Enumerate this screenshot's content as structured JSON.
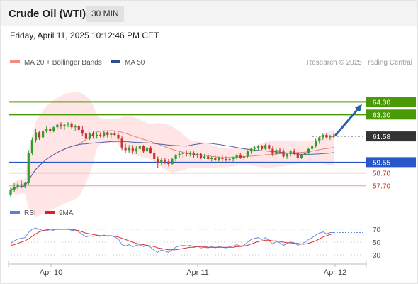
{
  "header": {
    "title": "Crude Oil (WTI)",
    "timeframe": "30 MIN"
  },
  "datetime": "Friday, April 11, 2025 10:12:46 PM CET",
  "legend": {
    "ma20": "MA 20 + Bollinger Bands",
    "ma50": "MA 50",
    "credit": "Research © 2025 Trading Central",
    "rsi": "RSI",
    "ma9": "9MA"
  },
  "colors": {
    "resistance": "#4a9a08",
    "current": "#333333",
    "pivot": "#2857c9",
    "support": "#c8301e",
    "support_line": "#f0b4a8",
    "bollinger_fill": "#ffe0e0",
    "ma20": "#e88080",
    "ma50": "#4a63a8",
    "candle_up": "#2e9e2e",
    "candle_down": "#c83232",
    "rsi": "#6a8fd8",
    "ma9": "#e03030",
    "arrow": "#2a5fb0"
  },
  "chart_data": {
    "type": "candlestick",
    "price_range": [
      56.5,
      66.0
    ],
    "levels": [
      {
        "name": "resistance-2",
        "value": 64.3,
        "label": "64.30",
        "kind": "resistance"
      },
      {
        "name": "resistance-1",
        "value": 63.3,
        "label": "63.30",
        "kind": "resistance"
      },
      {
        "name": "current",
        "value": 61.58,
        "label": "61.58",
        "kind": "current"
      },
      {
        "name": "pivot",
        "value": 59.55,
        "label": "59.55",
        "kind": "pivot"
      },
      {
        "name": "support-1",
        "value": 58.7,
        "label": "58.70",
        "kind": "support"
      },
      {
        "name": "support-2",
        "value": 57.7,
        "label": "57.70",
        "kind": "support"
      }
    ],
    "x_labels": [
      "Apr 10",
      "Apr 11",
      "Apr 12"
    ],
    "candles": [
      [
        57.0,
        57.6,
        56.8,
        57.4
      ],
      [
        57.4,
        57.9,
        57.2,
        57.6
      ],
      [
        57.6,
        58.0,
        57.4,
        57.8
      ],
      [
        57.8,
        58.1,
        57.5,
        57.7
      ],
      [
        57.7,
        58.0,
        57.5,
        57.9
      ],
      [
        57.9,
        60.5,
        57.8,
        60.3
      ],
      [
        60.3,
        61.5,
        60.1,
        61.3
      ],
      [
        61.3,
        62.2,
        61.1,
        61.9
      ],
      [
        61.9,
        62.0,
        61.3,
        61.5
      ],
      [
        61.5,
        62.2,
        61.4,
        62.0
      ],
      [
        62.0,
        62.4,
        61.8,
        62.2
      ],
      [
        62.2,
        62.3,
        61.8,
        62.0
      ],
      [
        62.0,
        62.4,
        61.9,
        62.3
      ],
      [
        62.3,
        62.6,
        62.1,
        62.5
      ],
      [
        62.5,
        62.7,
        62.2,
        62.4
      ],
      [
        62.4,
        62.6,
        62.1,
        62.5
      ],
      [
        62.5,
        62.7,
        62.3,
        62.6
      ],
      [
        62.6,
        62.7,
        62.2,
        62.3
      ],
      [
        62.3,
        62.5,
        62.0,
        62.4
      ],
      [
        62.4,
        62.5,
        62.0,
        62.1
      ],
      [
        62.1,
        62.4,
        61.6,
        61.8
      ],
      [
        61.8,
        61.9,
        61.2,
        61.4
      ],
      [
        61.4,
        61.9,
        61.3,
        61.8
      ],
      [
        61.8,
        62.0,
        61.4,
        61.6
      ],
      [
        61.6,
        61.9,
        61.4,
        61.7
      ],
      [
        61.7,
        61.9,
        61.5,
        61.6
      ],
      [
        61.6,
        62.0,
        61.5,
        61.9
      ],
      [
        61.9,
        62.0,
        61.5,
        61.7
      ],
      [
        61.7,
        61.9,
        61.4,
        61.8
      ],
      [
        61.8,
        62.0,
        61.6,
        61.7
      ],
      [
        61.7,
        61.9,
        61.3,
        61.4
      ],
      [
        61.4,
        61.6,
        60.5,
        60.7
      ],
      [
        60.7,
        61.0,
        60.3,
        60.5
      ],
      [
        60.5,
        60.9,
        60.3,
        60.7
      ],
      [
        60.7,
        60.9,
        60.2,
        60.4
      ],
      [
        60.4,
        60.8,
        60.2,
        60.6
      ],
      [
        60.6,
        60.9,
        60.4,
        60.8
      ],
      [
        60.8,
        60.9,
        60.3,
        60.4
      ],
      [
        60.4,
        60.8,
        60.3,
        60.7
      ],
      [
        60.7,
        60.8,
        60.2,
        60.3
      ],
      [
        60.3,
        60.5,
        59.6,
        59.8
      ],
      [
        59.8,
        60.0,
        59.1,
        59.5
      ],
      [
        59.5,
        59.9,
        59.3,
        59.7
      ],
      [
        59.7,
        59.9,
        59.4,
        59.6
      ],
      [
        59.6,
        59.8,
        59.2,
        59.4
      ],
      [
        59.4,
        59.9,
        59.3,
        59.8
      ],
      [
        59.8,
        60.2,
        59.6,
        60.1
      ],
      [
        60.1,
        60.4,
        59.9,
        60.2
      ],
      [
        60.2,
        60.4,
        59.9,
        60.3
      ],
      [
        60.3,
        60.5,
        60.0,
        60.2
      ],
      [
        60.2,
        60.4,
        60.0,
        60.3
      ],
      [
        60.3,
        60.4,
        59.9,
        60.1
      ],
      [
        60.1,
        60.3,
        59.9,
        60.2
      ],
      [
        60.2,
        60.3,
        59.8,
        59.9
      ],
      [
        59.9,
        60.2,
        59.8,
        60.0
      ],
      [
        60.0,
        60.2,
        59.7,
        59.8
      ],
      [
        59.8,
        60.0,
        59.6,
        59.9
      ],
      [
        59.9,
        60.1,
        59.6,
        59.7
      ],
      [
        59.7,
        60.0,
        59.5,
        59.9
      ],
      [
        59.9,
        60.1,
        59.6,
        59.8
      ],
      [
        59.8,
        60.0,
        59.6,
        59.7
      ],
      [
        59.7,
        59.9,
        59.5,
        59.8
      ],
      [
        59.8,
        60.0,
        59.6,
        59.9
      ],
      [
        59.9,
        60.2,
        59.7,
        60.1
      ],
      [
        60.1,
        60.3,
        59.8,
        59.9
      ],
      [
        59.9,
        60.1,
        59.7,
        60.0
      ],
      [
        60.0,
        60.5,
        59.9,
        60.4
      ],
      [
        60.4,
        60.7,
        60.2,
        60.6
      ],
      [
        60.6,
        60.8,
        60.4,
        60.7
      ],
      [
        60.7,
        60.9,
        60.5,
        60.8
      ],
      [
        60.8,
        60.9,
        60.5,
        60.6
      ],
      [
        60.6,
        61.0,
        60.5,
        60.9
      ],
      [
        60.9,
        61.0,
        60.5,
        60.6
      ],
      [
        60.6,
        60.8,
        60.0,
        60.2
      ],
      [
        60.2,
        60.6,
        60.1,
        60.5
      ],
      [
        60.5,
        60.7,
        60.2,
        60.4
      ],
      [
        60.4,
        60.6,
        59.9,
        60.0
      ],
      [
        60.0,
        60.3,
        59.8,
        60.2
      ],
      [
        60.2,
        60.5,
        60.0,
        60.4
      ],
      [
        60.4,
        60.6,
        60.1,
        60.3
      ],
      [
        60.3,
        60.4,
        59.8,
        59.9
      ],
      [
        59.9,
        60.2,
        59.8,
        60.1
      ],
      [
        60.1,
        60.4,
        59.9,
        60.3
      ],
      [
        60.3,
        60.7,
        60.2,
        60.6
      ],
      [
        60.6,
        60.9,
        60.4,
        60.8
      ],
      [
        60.8,
        61.4,
        60.7,
        61.2
      ],
      [
        61.2,
        61.6,
        61.0,
        61.5
      ],
      [
        61.5,
        61.8,
        61.3,
        61.7
      ],
      [
        61.7,
        61.8,
        61.4,
        61.5
      ],
      [
        61.5,
        61.7,
        61.3,
        61.6
      ],
      [
        61.6,
        61.8,
        61.4,
        61.58
      ]
    ],
    "rsi_range": [
      20,
      80
    ],
    "rsi_levels": [
      70,
      50,
      30
    ],
    "rsi": [
      48,
      52,
      55,
      56,
      57,
      65,
      70,
      72,
      70,
      68,
      69,
      67,
      69,
      71,
      70,
      70,
      71,
      68,
      69,
      66,
      62,
      58,
      60,
      59,
      60,
      59,
      61,
      59,
      60,
      58,
      55,
      46,
      44,
      46,
      43,
      45,
      46,
      43,
      45,
      42,
      37,
      34,
      38,
      36,
      34,
      38,
      42,
      44,
      45,
      44,
      45,
      43,
      44,
      41,
      42,
      41,
      43,
      41,
      43,
      42,
      41,
      43,
      44,
      46,
      44,
      45,
      50,
      54,
      56,
      57,
      54,
      57,
      53,
      47,
      51,
      49,
      45,
      48,
      50,
      49,
      45,
      47,
      50,
      54,
      57,
      61,
      64,
      66,
      63,
      65,
      65
    ],
    "ma9": [
      45,
      46,
      48,
      50,
      52,
      55,
      59,
      63,
      66,
      68,
      69,
      70,
      70,
      70,
      70,
      70,
      70,
      70,
      69,
      68,
      66,
      64,
      63,
      62,
      61,
      60,
      60,
      60,
      60,
      59,
      58,
      56,
      54,
      52,
      50,
      48,
      47,
      46,
      45,
      44,
      43,
      41,
      40,
      39,
      38,
      38,
      38,
      39,
      40,
      41,
      42,
      42,
      43,
      43,
      43,
      42,
      42,
      42,
      42,
      42,
      42,
      42,
      42,
      43,
      43,
      44,
      45,
      47,
      49,
      51,
      52,
      53,
      53,
      52,
      52,
      51,
      50,
      49,
      49,
      48,
      48,
      47,
      47,
      48,
      50,
      52,
      55,
      58,
      60,
      62,
      63
    ]
  }
}
